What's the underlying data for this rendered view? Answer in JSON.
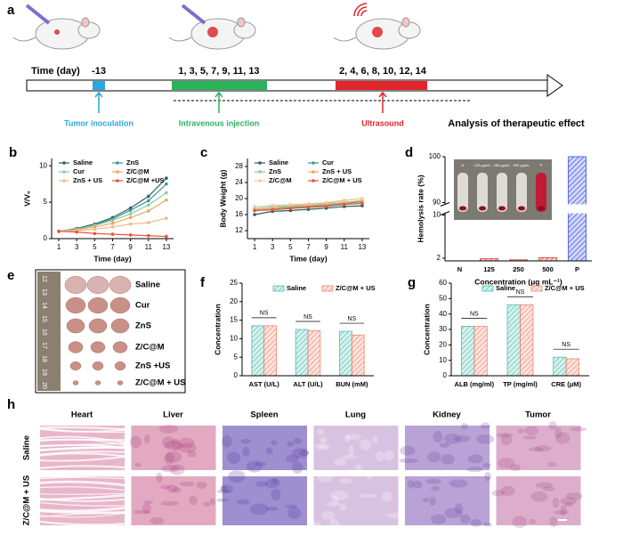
{
  "panel_a": {
    "label": "a",
    "time_label": "Time (day)",
    "days": [
      "-13",
      "1, 3, 5, 7, 9, 11, 13",
      "2, 4, 6, 8, 10, 12, 14"
    ],
    "events": [
      "Tumor inoculation",
      "Intravenous injection",
      "Ultrasound"
    ],
    "outcome": "Analysis of therapeutic effect"
  },
  "chart_data": [
    {
      "panel": "b",
      "type": "line",
      "xlabel": "Time (day)",
      "ylabel": "V/V₀",
      "x": [
        1,
        3,
        5,
        7,
        9,
        11,
        13
      ],
      "xlim": [
        0.2,
        13.8
      ],
      "xticks": [
        1,
        3,
        5,
        7,
        9,
        11,
        13
      ],
      "ylim": [
        0,
        11
      ],
      "yticks": [
        0,
        5,
        10
      ],
      "series": [
        {
          "name": "Saline",
          "color": "#2f5d62",
          "values": [
            1,
            1.4,
            2.0,
            2.9,
            4.2,
            5.8,
            8.3
          ]
        },
        {
          "name": "ZnS",
          "color": "#3f9a8c",
          "values": [
            1,
            1.3,
            1.9,
            2.7,
            3.9,
            5.2,
            7.5
          ]
        },
        {
          "name": "Cur",
          "color": "#8ec9a8",
          "values": [
            1,
            1.3,
            1.8,
            2.5,
            3.4,
            4.6,
            6.3
          ]
        },
        {
          "name": "Z/C@M",
          "color": "#f2a65a",
          "values": [
            1,
            1.2,
            1.6,
            2.1,
            2.9,
            3.8,
            5.3
          ]
        },
        {
          "name": "ZnS + US",
          "color": "#f7b98b",
          "values": [
            1,
            1.1,
            1.3,
            1.6,
            2.0,
            2.2,
            2.8
          ]
        },
        {
          "name": "Z/C@M +US",
          "color": "#e8553a",
          "values": [
            1,
            0.9,
            0.7,
            0.6,
            0.5,
            0.4,
            0.3
          ]
        }
      ]
    },
    {
      "panel": "c",
      "type": "line",
      "xlabel": "Time (day)",
      "ylabel": "Body Weight (g)",
      "x": [
        1,
        3,
        5,
        7,
        9,
        11,
        13
      ],
      "xlim": [
        0.2,
        13.8
      ],
      "xticks": [
        1,
        3,
        5,
        7,
        9,
        11,
        13
      ],
      "ylim": [
        10,
        30
      ],
      "yticks": [
        12,
        16,
        20,
        24,
        28
      ],
      "series": [
        {
          "name": "Saline",
          "color": "#2f5d62",
          "values": [
            16,
            16.8,
            17,
            17.3,
            17.6,
            18,
            18.2
          ]
        },
        {
          "name": "Cur",
          "color": "#3f9a8c",
          "values": [
            17,
            17.5,
            17.8,
            18,
            18.3,
            18.8,
            19.2
          ]
        },
        {
          "name": "ZnS",
          "color": "#8ec9a8",
          "values": [
            17.5,
            18,
            18.2,
            18.5,
            18.8,
            19.5,
            20
          ]
        },
        {
          "name": "ZnS + US",
          "color": "#f2a65a",
          "values": [
            17.2,
            17.6,
            18,
            18.2,
            18.6,
            19,
            19.5
          ]
        },
        {
          "name": "Z/C@M",
          "color": "#f7c89b",
          "values": [
            18,
            18.3,
            18.5,
            18.7,
            19,
            19.6,
            20
          ]
        },
        {
          "name": "Z/C@M + US",
          "color": "#e8553a",
          "values": [
            17,
            17.2,
            17.5,
            17.8,
            18,
            18.5,
            18.8
          ]
        }
      ]
    },
    {
      "panel": "d",
      "type": "bar",
      "xlabel": "Concentration (μg mL⁻¹)",
      "ylabel": "Hemolysis rate (%)",
      "categories": [
        "N",
        "125",
        "250",
        "500",
        "P"
      ],
      "values": [
        0.5,
        1.9,
        1.7,
        2.1,
        100
      ],
      "colors": [
        "#e03a2c",
        "#e03a2c",
        "#e03a2c",
        "#e03a2c",
        "#3048e0"
      ],
      "ylim": [
        1.5,
        100
      ],
      "yticks": [
        2,
        10,
        90,
        100
      ],
      "axis_break": [
        10,
        90
      ],
      "inset_labels": [
        "N",
        "125 μg/mL",
        "250 μg/mL",
        "500 μg/mL",
        "P"
      ]
    },
    {
      "panel": "f",
      "type": "bar",
      "ylabel": "Concentration",
      "categories": [
        "AST (U/L)",
        "ALT (U/L)",
        "BUN (mM)"
      ],
      "ylim": [
        0,
        25
      ],
      "yticks": [
        0,
        5,
        10,
        15,
        20,
        25
      ],
      "annotations": [
        "NS",
        "NS",
        "NS"
      ],
      "series": [
        {
          "name": "Saline",
          "color": "#4dbfae",
          "values": [
            13.5,
            12.5,
            12
          ]
        },
        {
          "name": "Z/C@M + US",
          "color": "#f0846f",
          "values": [
            13.5,
            12.2,
            11
          ]
        }
      ]
    },
    {
      "panel": "g",
      "type": "bar",
      "ylabel": "Concentration",
      "categories": [
        "ALB (mg/ml)",
        "TP (mg/ml)",
        "CRE (μM)"
      ],
      "ylim": [
        0,
        60
      ],
      "yticks": [
        0,
        10,
        20,
        30,
        40,
        50,
        60
      ],
      "annotations": [
        "NS",
        "NS",
        "NS"
      ],
      "series": [
        {
          "name": "Saline",
          "color": "#4dbfae",
          "values": [
            32,
            46,
            12
          ]
        },
        {
          "name": "Z/C@M + US",
          "color": "#f0846f",
          "values": [
            32,
            46,
            11
          ]
        }
      ]
    }
  ],
  "panel_e": {
    "label": "e",
    "groups": [
      "Saline",
      "Cur",
      "ZnS",
      "Z/C@M",
      "ZnS +US",
      "Z/C@M + US"
    ],
    "ruler": [
      "12",
      "13",
      "14",
      "15",
      "16",
      "17",
      "18",
      "19",
      "20"
    ]
  },
  "panel_h": {
    "label": "h",
    "tissues": [
      "Heart",
      "Liver",
      "Spleen",
      "Lung",
      "Kidney",
      "Tumor"
    ],
    "groups": [
      "Saline",
      "Z/C@M + US"
    ]
  }
}
